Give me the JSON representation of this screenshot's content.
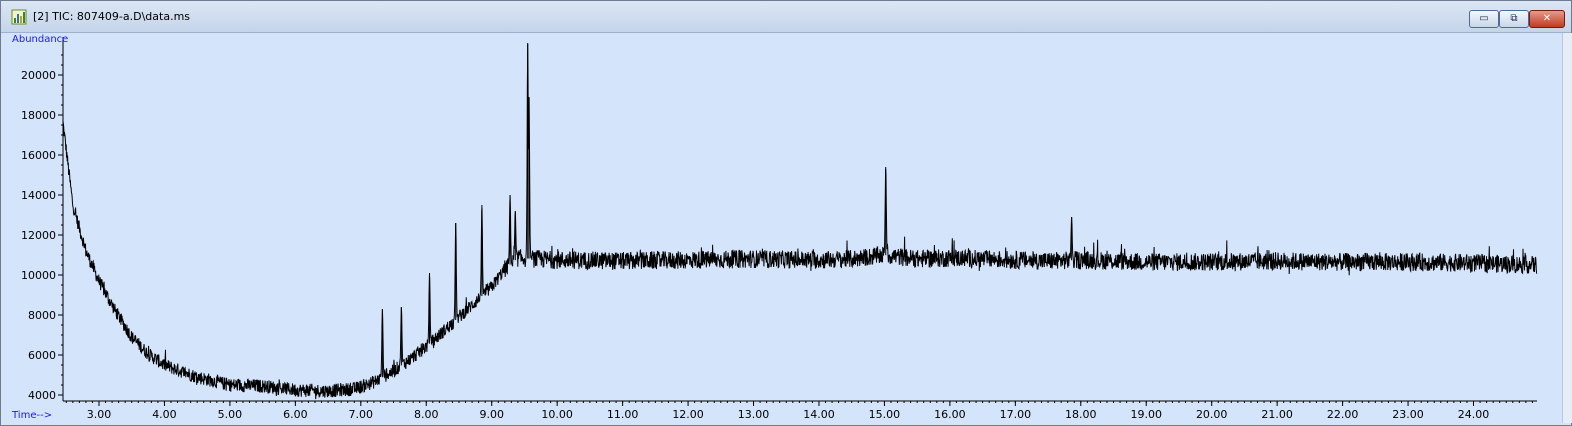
{
  "window": {
    "title": "[2] TIC: 807409-a.D\\data.ms",
    "controls": {
      "minimize": "▭",
      "restore": "⧉",
      "close": "✕"
    }
  },
  "colors": {
    "plot_background": "#d4e4fb",
    "trace": "#000000",
    "axis_title": "#1a1aff"
  },
  "chart_data": {
    "type": "line",
    "ylabel": "Abundance",
    "xlabel": "Time-->",
    "xlim": [
      2.45,
      24.97
    ],
    "ylim": [
      3700,
      21900
    ],
    "x_ticks": [
      "3.00",
      "4.00",
      "5.00",
      "6.00",
      "7.00",
      "8.00",
      "9.00",
      "10.00",
      "11.00",
      "12.00",
      "13.00",
      "14.00",
      "15.00",
      "16.00",
      "17.00",
      "18.00",
      "19.00",
      "20.00",
      "21.00",
      "22.00",
      "23.00",
      "24.00"
    ],
    "y_ticks": [
      "4000",
      "6000",
      "8000",
      "10000",
      "12000",
      "14000",
      "16000",
      "18000",
      "20000"
    ],
    "series": [
      {
        "x": [
          2.45,
          2.6,
          2.8,
          3.0,
          3.25,
          3.5,
          3.75,
          4.0,
          4.5,
          5.0,
          5.5,
          6.0,
          6.5,
          6.9,
          7.2,
          7.5,
          7.8,
          8.1,
          8.4,
          8.7,
          9.0,
          9.2,
          9.4,
          9.7,
          10.0,
          11.0,
          12.0,
          13.0,
          14.0,
          14.5,
          15.0,
          15.5,
          16.0,
          17.0,
          17.5,
          18.0,
          19.0,
          20.0,
          21.0,
          22.0,
          23.0,
          24.0,
          24.97
        ],
        "y": [
          17600,
          13500,
          11200,
          9700,
          8200,
          6900,
          6050,
          5500,
          4900,
          4500,
          4450,
          4250,
          4200,
          4300,
          4650,
          5200,
          5900,
          6700,
          7600,
          8500,
          9400,
          10300,
          10850,
          10800,
          10750,
          10700,
          10750,
          10800,
          10750,
          10800,
          11000,
          10800,
          10850,
          10750,
          10700,
          10750,
          10650,
          10650,
          10700,
          10650,
          10650,
          10600,
          10500
        ]
      }
    ],
    "peaks": [
      {
        "x": 7.33,
        "y": 8300
      },
      {
        "x": 7.62,
        "y": 8400
      },
      {
        "x": 8.05,
        "y": 10100
      },
      {
        "x": 8.45,
        "y": 12600
      },
      {
        "x": 8.85,
        "y": 13500
      },
      {
        "x": 9.28,
        "y": 14000
      },
      {
        "x": 9.36,
        "y": 13200
      },
      {
        "x": 9.55,
        "y": 21600
      },
      {
        "x": 9.57,
        "y": 18900
      },
      {
        "x": 15.02,
        "y": 15400
      },
      {
        "x": 17.86,
        "y": 12900
      }
    ],
    "noise_amplitude": 450
  }
}
